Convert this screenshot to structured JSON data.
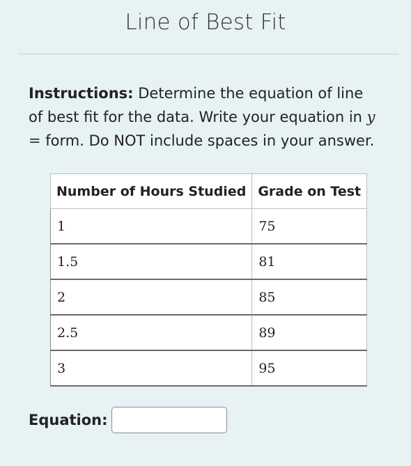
{
  "page": {
    "title": "Line of Best Fit"
  },
  "instructions": {
    "label": "Instructions:",
    "text_before_math": " Determine the equation of line of best fit for the data. Write your equation in ",
    "math_var": "y",
    "math_op": " =",
    "text_after_math": " form. Do NOT include spaces in your answer."
  },
  "table": {
    "headers": [
      "Number of Hours Studied",
      "Grade on Test"
    ],
    "rows": [
      [
        "1",
        "75"
      ],
      [
        "1.5",
        "81"
      ],
      [
        "2",
        "85"
      ],
      [
        "2.5",
        "89"
      ],
      [
        "3",
        "95"
      ]
    ]
  },
  "equation": {
    "label": "Equation:",
    "value": "",
    "placeholder": ""
  }
}
